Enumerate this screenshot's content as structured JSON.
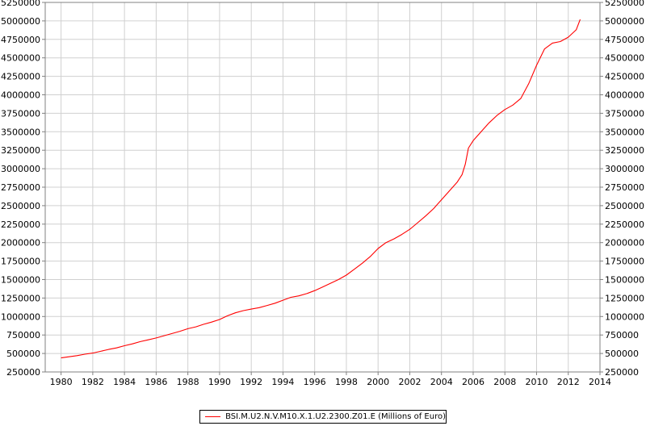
{
  "chart_data": {
    "type": "line",
    "title": "",
    "xlabel": "",
    "ylabel": "",
    "xlim": [
      1979.0,
      2014.0
    ],
    "ylim": [
      250000,
      5250000
    ],
    "x_ticks": [
      "1980",
      "1982",
      "1984",
      "1986",
      "1988",
      "1990",
      "1992",
      "1994",
      "1996",
      "1998",
      "2000",
      "2002",
      "2004",
      "2006",
      "2008",
      "2010",
      "2012",
      "2014"
    ],
    "y_ticks": [
      "250000",
      "500000",
      "750000",
      "1000000",
      "1250000",
      "1500000",
      "1750000",
      "2000000",
      "2250000",
      "2500000",
      "2750000",
      "3000000",
      "3250000",
      "3500000",
      "3750000",
      "4000000",
      "4250000",
      "4500000",
      "4750000",
      "5000000",
      "5250000"
    ],
    "grid": true,
    "legend_position": "bottom-center",
    "colors": {
      "series": "#ff0000",
      "grid": "#d0d0d0",
      "plot_border": "#808080"
    },
    "series": [
      {
        "name": "BSI.M.U2.N.V.M10.X.1.U2.2300.Z01.E (Millions of Euro)",
        "x": [
          1980.0,
          1980.5,
          1981.0,
          1981.5,
          1982.0,
          1982.5,
          1983.0,
          1983.5,
          1984.0,
          1984.5,
          1985.0,
          1985.5,
          1986.0,
          1986.5,
          1987.0,
          1987.5,
          1988.0,
          1988.5,
          1989.0,
          1989.5,
          1990.0,
          1990.5,
          1991.0,
          1991.5,
          1992.0,
          1992.5,
          1993.0,
          1993.5,
          1994.0,
          1994.5,
          1995.0,
          1995.5,
          1996.0,
          1996.5,
          1997.0,
          1997.5,
          1998.0,
          1998.5,
          1999.0,
          1999.5,
          2000.0,
          2000.5,
          2001.0,
          2001.5,
          2002.0,
          2002.5,
          2003.0,
          2003.5,
          2004.0,
          2004.5,
          2005.0,
          2005.3,
          2005.5,
          2005.7,
          2006.0,
          2006.5,
          2007.0,
          2007.5,
          2008.0,
          2008.5,
          2009.0,
          2009.5,
          2010.0,
          2010.5,
          2011.0,
          2011.5,
          2012.0,
          2012.5,
          2012.75
        ],
        "values": [
          440000,
          455000,
          470000,
          490000,
          505000,
          530000,
          555000,
          575000,
          605000,
          630000,
          660000,
          685000,
          710000,
          740000,
          770000,
          800000,
          835000,
          860000,
          895000,
          925000,
          960000,
          1010000,
          1050000,
          1080000,
          1100000,
          1120000,
          1150000,
          1180000,
          1220000,
          1260000,
          1280000,
          1310000,
          1350000,
          1400000,
          1450000,
          1500000,
          1560000,
          1640000,
          1720000,
          1810000,
          1920000,
          2000000,
          2050000,
          2110000,
          2180000,
          2270000,
          2360000,
          2460000,
          2580000,
          2700000,
          2820000,
          2920000,
          3060000,
          3280000,
          3380000,
          3500000,
          3620000,
          3720000,
          3800000,
          3860000,
          3950000,
          4150000,
          4400000,
          4620000,
          4700000,
          4720000,
          4780000,
          4880000,
          5020000
        ]
      }
    ]
  }
}
